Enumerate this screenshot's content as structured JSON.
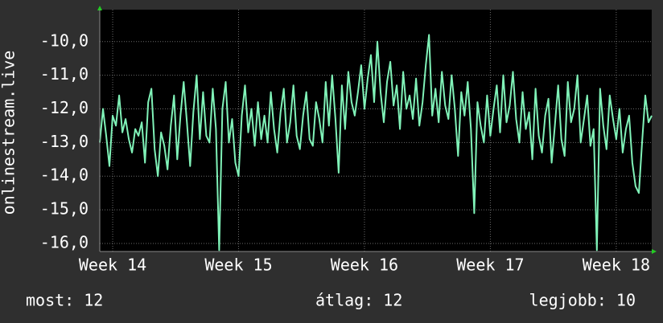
{
  "chart_data": {
    "type": "line",
    "y_label": "onlinestream.live",
    "color": "#80f2b8",
    "grid": true,
    "ylim": [
      -16.24,
      -9.05
    ],
    "yticks": [
      {
        "value": -10,
        "label": "-10,0"
      },
      {
        "value": -11,
        "label": "-11,0"
      },
      {
        "value": -12,
        "label": "-12,0"
      },
      {
        "value": -13,
        "label": "-13,0"
      },
      {
        "value": -14,
        "label": "-14,0"
      },
      {
        "value": -15,
        "label": "-15,0"
      },
      {
        "value": -16,
        "label": "-16,0"
      }
    ],
    "xlim": [
      0,
      171
    ],
    "xticks": [
      {
        "value": 4,
        "label": "Week 14"
      },
      {
        "value": 43,
        "label": "Week 15"
      },
      {
        "value": 82,
        "label": "Week 16"
      },
      {
        "value": 121,
        "label": "Week 17"
      },
      {
        "value": 160,
        "label": "Week 18"
      }
    ],
    "values": [
      -13.0,
      -12.0,
      -12.8,
      -13.7,
      -12.2,
      -12.5,
      -11.6,
      -12.7,
      -12.3,
      -12.9,
      -13.3,
      -12.6,
      -12.8,
      -12.4,
      -13.6,
      -11.8,
      -11.4,
      -13.2,
      -14.0,
      -12.7,
      -13.1,
      -13.8,
      -12.5,
      -11.6,
      -13.5,
      -12.2,
      -11.2,
      -12.4,
      -13.7,
      -12.1,
      -11.0,
      -12.9,
      -11.5,
      -12.8,
      -13.0,
      -11.4,
      -12.6,
      -16.2,
      -12.0,
      -11.2,
      -13.0,
      -12.3,
      -13.6,
      -14.0,
      -12.2,
      -11.3,
      -12.7,
      -12.0,
      -13.1,
      -11.8,
      -12.9,
      -12.2,
      -13.0,
      -11.5,
      -12.6,
      -13.3,
      -12.1,
      -11.4,
      -13.0,
      -12.4,
      -11.3,
      -12.8,
      -13.2,
      -12.2,
      -11.5,
      -12.9,
      -13.1,
      -11.8,
      -12.3,
      -13.0,
      -11.2,
      -12.5,
      -11.0,
      -12.3,
      -13.9,
      -11.3,
      -12.6,
      -10.9,
      -11.8,
      -12.2,
      -11.5,
      -10.7,
      -12.0,
      -11.1,
      -10.4,
      -11.8,
      -10.0,
      -11.5,
      -12.4,
      -11.2,
      -10.6,
      -11.9,
      -11.3,
      -12.6,
      -10.9,
      -12.0,
      -11.6,
      -12.3,
      -11.1,
      -12.5,
      -11.8,
      -10.7,
      -9.8,
      -12.2,
      -11.4,
      -12.4,
      -10.9,
      -11.9,
      -12.3,
      -11.0,
      -12.0,
      -13.4,
      -11.5,
      -12.2,
      -11.2,
      -12.6,
      -15.1,
      -11.8,
      -12.5,
      -13.0,
      -11.6,
      -12.8,
      -12.0,
      -11.3,
      -12.7,
      -11.0,
      -12.4,
      -11.9,
      -10.9,
      -12.3,
      -13.0,
      -11.5,
      -12.6,
      -12.1,
      -13.5,
      -11.4,
      -12.8,
      -13.3,
      -12.2,
      -11.7,
      -13.6,
      -12.5,
      -11.3,
      -12.9,
      -13.4,
      -11.2,
      -12.4,
      -12.0,
      -11.0,
      -13.0,
      -12.3,
      -11.6,
      -13.1,
      -12.6,
      -16.2,
      -11.4,
      -12.5,
      -13.2,
      -11.6,
      -12.3,
      -12.9,
      -12.0,
      -13.3,
      -12.6,
      -12.2,
      -13.6,
      -14.3,
      -14.5,
      -13.0,
      -11.6,
      -12.4,
      -12.2
    ],
    "stats": [
      "most: 12",
      "átlag: 12",
      "legjobb: 10"
    ]
  }
}
